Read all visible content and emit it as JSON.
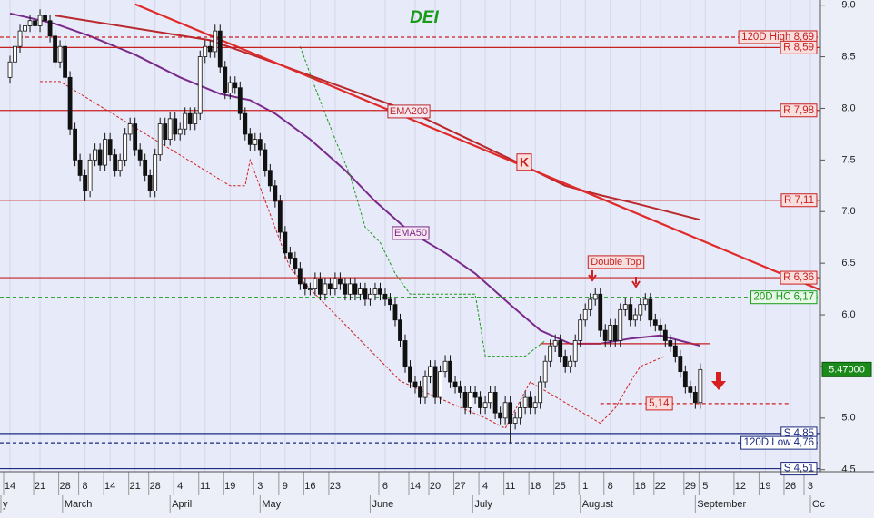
{
  "chart_data": {
    "type": "candlestick",
    "title": "DEI",
    "xlim": [
      -2,
      162
    ],
    "ylim": [
      4.48,
      9.05
    ],
    "yticks": [
      {
        "value": 9,
        "label": "9.0"
      },
      8.5,
      {
        "value": 8,
        "label": "8.0"
      },
      7.5,
      {
        "value": 7,
        "label": "7.0"
      },
      6.5,
      {
        "value": 6,
        "label": "6.0"
      },
      5.5,
      {
        "value": 5,
        "label": "5.0"
      },
      4.5
    ],
    "xticks": [
      {
        "value": 0,
        "label": "14"
      },
      {
        "value": 6,
        "label": "21"
      },
      {
        "value": 11,
        "label": "28"
      },
      {
        "value": 15,
        "label": "8"
      },
      {
        "value": 20,
        "label": "14"
      },
      {
        "value": 25,
        "label": "21"
      },
      {
        "value": 29,
        "label": "28"
      },
      {
        "value": 34,
        "label": "4"
      },
      {
        "value": 39,
        "label": "11"
      },
      {
        "value": 44,
        "label": "19"
      },
      {
        "value": 50,
        "label": "3"
      },
      {
        "value": 55,
        "label": "9"
      },
      {
        "value": 60,
        "label": "16"
      },
      {
        "value": 65,
        "label": "23"
      },
      {
        "value": 75,
        "label": "6"
      },
      {
        "value": 81,
        "label": "14"
      },
      {
        "value": 85,
        "label": "20"
      },
      {
        "value": 90,
        "label": "27"
      },
      {
        "value": 95,
        "label": "4"
      },
      {
        "value": 100,
        "label": "11"
      },
      {
        "value": 105,
        "label": "18"
      },
      {
        "value": 110,
        "label": "25"
      },
      {
        "value": 115,
        "label": "1"
      },
      {
        "value": 120,
        "label": "8"
      },
      {
        "value": 126,
        "label": "16"
      },
      {
        "value": 130,
        "label": "22"
      },
      {
        "value": 136,
        "label": "29"
      },
      {
        "value": 139,
        "label": "5"
      },
      {
        "value": 146,
        "label": "12"
      },
      {
        "value": 151,
        "label": "19"
      },
      {
        "value": 156,
        "label": "26"
      },
      {
        "value": 160,
        "label": "3"
      }
    ],
    "month_ticks": [
      {
        "value": -2,
        "label": "y"
      },
      {
        "value": 10.5,
        "label": "March"
      },
      {
        "value": 32,
        "label": "April"
      },
      {
        "value": 50,
        "label": "May"
      },
      {
        "value": 72,
        "label": "June"
      },
      {
        "value": 92.5,
        "label": "July"
      },
      {
        "value": 114,
        "label": "August"
      },
      {
        "value": 137,
        "label": "September"
      },
      {
        "value": 160,
        "label": "Oc"
      }
    ],
    "candles": {
      "open": [
        8.3,
        8.45,
        8.6,
        8.75,
        8.8,
        8.85,
        8.8,
        8.9,
        8.85,
        8.7,
        8.45,
        8.6,
        8.3,
        7.8,
        7.5,
        7.35,
        7.2,
        7.5,
        7.6,
        7.45,
        7.7,
        7.55,
        7.4,
        7.5,
        7.75,
        7.85,
        7.6,
        7.5,
        7.35,
        7.2,
        7.55,
        7.85,
        7.7,
        7.9,
        7.75,
        7.8,
        7.95,
        7.85,
        7.95,
        8.5,
        8.6,
        8.55,
        8.75,
        8.4,
        8.15,
        8.25,
        8.2,
        7.95,
        7.75,
        7.65,
        7.7,
        7.6,
        7.4,
        7.25,
        7.1,
        6.8,
        6.6,
        6.55,
        6.45,
        6.3,
        6.25,
        6.25,
        6.35,
        6.2,
        6.3,
        6.25,
        6.35,
        6.3,
        6.2,
        6.3,
        6.2,
        6.25,
        6.15,
        6.2,
        6.25,
        6.2,
        6.15,
        6.1,
        5.95,
        5.75,
        5.5,
        5.35,
        5.3,
        5.2,
        5.4,
        5.5,
        5.2,
        5.45,
        5.55,
        5.35,
        5.3,
        5.25,
        5.1,
        5.25,
        5.2,
        5.1,
        5.15,
        5.25,
        5.05,
        5.0,
        5.15,
        4.95,
        5.0,
        5.1,
        5.2,
        5.1,
        5.15,
        5.35,
        5.55,
        5.7,
        5.75,
        5.6,
        5.5,
        5.55,
        5.75,
        5.95,
        6.05,
        6.15,
        6.2,
        5.85,
        5.75,
        5.9,
        5.75,
        6.05,
        6.1,
        5.95,
        6.0,
        6.1,
        6.15,
        5.95,
        5.9,
        5.85,
        5.75,
        5.7,
        5.6,
        5.45,
        5.3,
        5.25,
        5.15
      ],
      "high": [
        8.51,
        8.66,
        8.81,
        8.86,
        8.91,
        8.91,
        8.96,
        8.96,
        8.91,
        8.76,
        8.66,
        8.66,
        8.36,
        7.86,
        7.56,
        7.41,
        7.56,
        7.66,
        7.66,
        7.76,
        7.76,
        7.61,
        7.56,
        7.81,
        7.91,
        7.91,
        7.66,
        7.56,
        7.41,
        7.61,
        7.91,
        7.91,
        7.96,
        7.96,
        7.86,
        8.01,
        8.01,
        8.01,
        8.56,
        8.66,
        8.66,
        8.81,
        8.81,
        8.46,
        8.31,
        8.31,
        8.26,
        8.01,
        7.81,
        7.76,
        7.76,
        7.66,
        7.46,
        7.31,
        7.16,
        6.86,
        6.66,
        6.61,
        6.51,
        6.36,
        6.31,
        6.41,
        6.41,
        6.36,
        6.36,
        6.41,
        6.41,
        6.36,
        6.36,
        6.36,
        6.31,
        6.31,
        6.26,
        6.31,
        6.31,
        6.26,
        6.21,
        6.16,
        6.01,
        5.81,
        5.56,
        5.41,
        5.36,
        5.46,
        5.56,
        5.56,
        5.51,
        5.61,
        5.61,
        5.41,
        5.36,
        5.31,
        5.31,
        5.31,
        5.26,
        5.21,
        5.31,
        5.31,
        5.11,
        5.21,
        5.21,
        5.06,
        5.16,
        5.26,
        5.26,
        5.21,
        5.41,
        5.61,
        5.76,
        5.81,
        5.81,
        5.66,
        5.61,
        5.81,
        6.01,
        6.11,
        6.21,
        6.26,
        6.26,
        5.91,
        5.96,
        5.96,
        6.11,
        6.16,
        6.16,
        6.06,
        6.16,
        6.21,
        6.21,
        6.01,
        5.96,
        5.91,
        5.81,
        5.76,
        5.66,
        5.51,
        5.36,
        5.31,
        5.53
      ],
      "low": [
        8.24,
        8.39,
        8.54,
        8.69,
        8.74,
        8.74,
        8.74,
        8.79,
        8.64,
        8.39,
        8.39,
        8.24,
        7.74,
        7.44,
        7.29,
        7.1,
        7.14,
        7.44,
        7.39,
        7.39,
        7.49,
        7.34,
        7.34,
        7.44,
        7.69,
        7.54,
        7.44,
        7.29,
        7.14,
        7.14,
        7.49,
        7.64,
        7.64,
        7.69,
        7.69,
        7.74,
        7.79,
        7.79,
        7.89,
        8.44,
        8.49,
        8.49,
        8.34,
        8.09,
        8.09,
        8.14,
        7.89,
        7.69,
        7.59,
        7.59,
        7.54,
        7.34,
        7.19,
        7.04,
        6.74,
        6.54,
        6.49,
        6.39,
        6.24,
        6.19,
        6.19,
        6.19,
        6.14,
        6.14,
        6.19,
        6.19,
        6.24,
        6.14,
        6.14,
        6.14,
        6.14,
        6.09,
        6.09,
        6.14,
        6.14,
        6.09,
        6.04,
        5.89,
        5.69,
        5.44,
        5.29,
        5.24,
        5.14,
        5.14,
        5.34,
        5.14,
        5.14,
        5.39,
        5.29,
        5.24,
        5.19,
        5.04,
        5.04,
        5.14,
        5.04,
        5.04,
        5.09,
        4.99,
        4.94,
        4.94,
        4.76,
        4.89,
        4.94,
        5.04,
        5.04,
        5.04,
        5.09,
        5.29,
        5.49,
        5.64,
        5.54,
        5.44,
        5.44,
        5.49,
        5.69,
        5.89,
        5.99,
        6.09,
        5.79,
        5.69,
        5.69,
        5.69,
        5.69,
        5.99,
        5.89,
        5.89,
        5.94,
        6.04,
        5.89,
        5.84,
        5.79,
        5.69,
        5.64,
        5.54,
        5.39,
        5.24,
        5.19,
        5.09,
        5.09
      ],
      "close": [
        8.45,
        8.6,
        8.75,
        8.8,
        8.85,
        8.8,
        8.9,
        8.85,
        8.7,
        8.45,
        8.6,
        8.3,
        7.8,
        7.5,
        7.35,
        7.2,
        7.5,
        7.6,
        7.45,
        7.7,
        7.55,
        7.4,
        7.5,
        7.75,
        7.85,
        7.6,
        7.5,
        7.35,
        7.2,
        7.55,
        7.85,
        7.7,
        7.9,
        7.75,
        7.8,
        7.95,
        7.85,
        7.95,
        8.5,
        8.6,
        8.55,
        8.75,
        8.4,
        8.15,
        8.25,
        8.2,
        7.95,
        7.75,
        7.65,
        7.7,
        7.6,
        7.4,
        7.25,
        7.1,
        6.8,
        6.6,
        6.55,
        6.45,
        6.3,
        6.25,
        6.25,
        6.35,
        6.2,
        6.3,
        6.25,
        6.35,
        6.3,
        6.2,
        6.3,
        6.2,
        6.25,
        6.15,
        6.2,
        6.25,
        6.2,
        6.15,
        6.1,
        5.95,
        5.75,
        5.5,
        5.35,
        5.3,
        5.2,
        5.4,
        5.5,
        5.2,
        5.45,
        5.55,
        5.35,
        5.3,
        5.25,
        5.1,
        5.25,
        5.2,
        5.1,
        5.15,
        5.25,
        5.05,
        5.0,
        5.15,
        4.95,
        5.0,
        5.1,
        5.2,
        5.1,
        5.15,
        5.35,
        5.55,
        5.7,
        5.75,
        5.6,
        5.5,
        5.55,
        5.75,
        5.95,
        6.05,
        6.15,
        6.2,
        5.85,
        5.75,
        5.9,
        5.75,
        6.05,
        6.1,
        5.95,
        6.0,
        6.1,
        6.15,
        5.95,
        5.9,
        5.85,
        5.75,
        5.7,
        5.6,
        5.45,
        5.3,
        5.25,
        5.15,
        5.47
      ]
    },
    "overlays": [
      {
        "name": "EMA200",
        "color": "#b8282c",
        "style": "solid",
        "x": [
          9,
          40,
          53,
          80,
          100,
          111,
          118,
          125,
          138
        ],
        "values": [
          8.9,
          8.66,
          8.44,
          7.97,
          7.51,
          7.25,
          7.16,
          7.08,
          6.92
        ]
      },
      {
        "name": "EMA50",
        "color": "#7a2a8c",
        "style": "solid",
        "x": [
          0,
          9,
          16,
          25,
          34,
          42,
          48,
          53,
          60,
          67,
          73,
          80,
          87,
          93,
          100,
          106,
          112,
          118,
          124,
          130,
          138
        ],
        "values": [
          8.92,
          8.82,
          8.7,
          8.52,
          8.3,
          8.14,
          8.08,
          7.95,
          7.7,
          7.4,
          7.1,
          6.8,
          6.6,
          6.4,
          6.1,
          5.85,
          5.72,
          5.72,
          5.77,
          5.8,
          5.7
        ]
      },
      {
        "color": "#e02a2a",
        "style": "trend",
        "x": [
          25,
          162
        ],
        "values": [
          9.01,
          6.24
        ]
      },
      {
        "color": "#1a9a1a",
        "style": "dashed",
        "x": [
          58,
          61,
          65,
          68,
          71,
          74,
          77,
          80,
          93,
          95,
          103,
          107
        ],
        "values": [
          8.6,
          8.2,
          7.7,
          7.35,
          6.85,
          6.7,
          6.4,
          6.2,
          6.2,
          5.6,
          5.6,
          5.75
        ]
      },
      {
        "color": "#d02020",
        "style": "dashed",
        "x": [
          6,
          10,
          44,
          47,
          48,
          56,
          60,
          78,
          84,
          95,
          99,
          104,
          118,
          121,
          124,
          126,
          131
        ],
        "values": [
          8.26,
          8.26,
          7.25,
          7.25,
          7.5,
          6.45,
          6.25,
          5.36,
          5.23,
          5.0,
          4.9,
          5.35,
          4.95,
          5.1,
          5.35,
          5.5,
          5.6
        ]
      }
    ],
    "levels": [
      {
        "value": 8.69,
        "label": "120D High 8,69",
        "color": "#c82020",
        "style": "dashed"
      },
      {
        "value": 8.59,
        "label": "R 8,59",
        "color": "#c82020",
        "style": "solid"
      },
      {
        "value": 7.98,
        "label": "R 7,98",
        "color": "#c82020",
        "style": "solid"
      },
      {
        "value": 7.11,
        "label": "R 7,11",
        "color": "#c82020",
        "style": "solid"
      },
      {
        "value": 6.36,
        "label": "R 6,36",
        "color": "#c82020",
        "style": "solid"
      },
      {
        "value": 6.17,
        "label": "20D HC 6,17",
        "color": "#1a9a1a",
        "style": "dashed"
      },
      {
        "value": 4.85,
        "label": "S 4,85",
        "color": "#1a2a80",
        "style": "solid"
      },
      {
        "value": 4.76,
        "label": "120D Low 4,76",
        "color": "#1a2a80",
        "style": "dashed"
      },
      {
        "value": 4.51,
        "label": "S 4,51",
        "color": "#1a2a80",
        "style": "solid"
      }
    ],
    "short_levels": [
      {
        "value": 5.14,
        "label": "5,14",
        "color": "#d02020",
        "span": [
          118,
          156
        ]
      },
      {
        "value": 5.72,
        "color": "#c82020",
        "span": [
          106,
          140
        ]
      }
    ],
    "last_price": {
      "value": 5.47,
      "label": "5.47000"
    },
    "annotations": [
      "Double Top",
      "K"
    ]
  }
}
